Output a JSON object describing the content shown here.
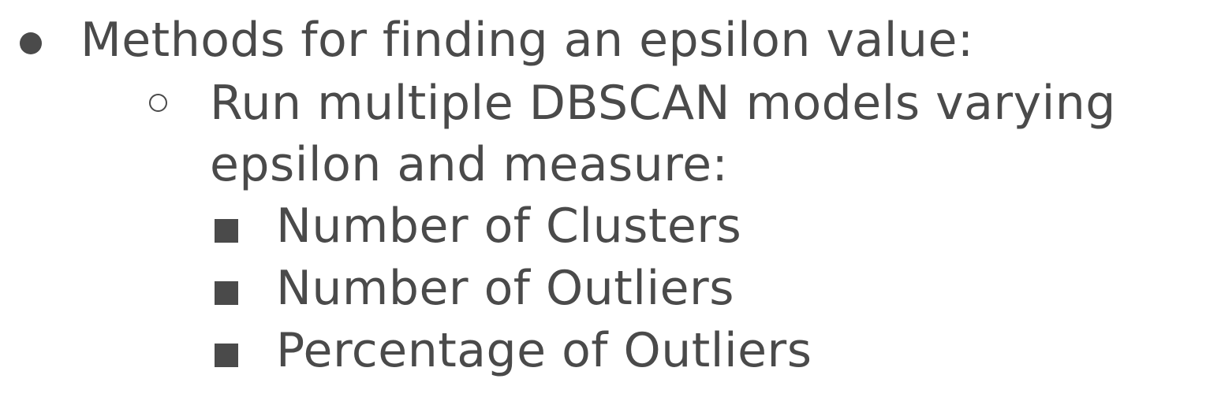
{
  "slide": {
    "level1": {
      "bullet": "disc-bullet-icon",
      "text": "Methods for finding an epsilon value:",
      "level2": {
        "bullet": "circle-bullet-icon",
        "line1": "Run multiple DBSCAN models varying",
        "line2": "epsilon and measure:",
        "level3": [
          {
            "bullet": "square-bullet-icon",
            "text": "Number of Clusters"
          },
          {
            "bullet": "square-bullet-icon",
            "text": "Number of Outliers"
          },
          {
            "bullet": "square-bullet-icon",
            "text": "Percentage of Outliers"
          }
        ]
      }
    },
    "colors": {
      "text": "#4a4a4a",
      "background": "#ffffff"
    }
  }
}
